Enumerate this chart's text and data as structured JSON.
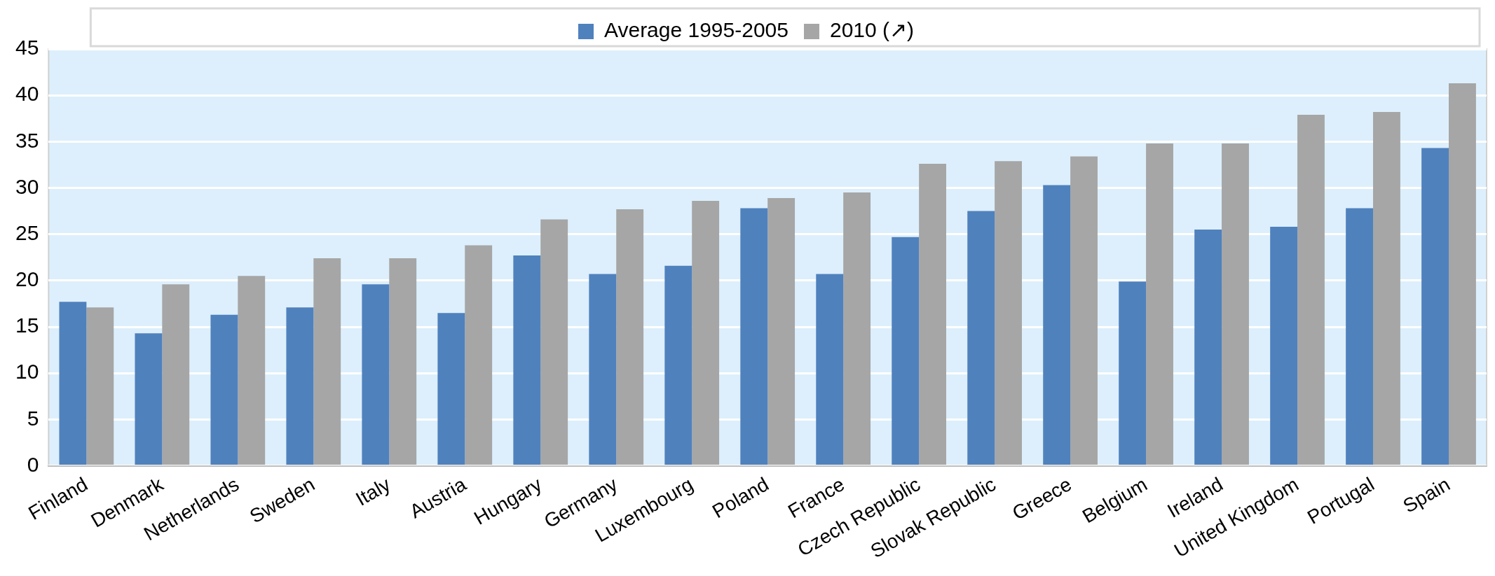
{
  "chart_data": {
    "type": "bar",
    "categories": [
      "Finland",
      "Denmark",
      "Netherlands",
      "Sweden",
      "Italy",
      "Austria",
      "Hungary",
      "Germany",
      "Luxembourg",
      "Poland",
      "France",
      "Czech Republic",
      "Slovak Republic",
      "Greece",
      "Belgium",
      "Ireland",
      "United Kingdom",
      "Portugal",
      "Spain"
    ],
    "series": [
      {
        "name": "Average 1995-2005",
        "color": "#4f81bd",
        "values": [
          17.7,
          14.3,
          16.3,
          17.1,
          19.6,
          16.5,
          22.7,
          20.7,
          21.6,
          27.8,
          20.7,
          24.7,
          27.5,
          30.3,
          19.9,
          25.5,
          25.8,
          27.8,
          34.3
        ]
      },
      {
        "name": "2010 (↗)",
        "color": "#a6a6a6",
        "values": [
          17.1,
          19.6,
          20.5,
          22.4,
          22.4,
          23.8,
          26.6,
          27.7,
          28.6,
          28.9,
          29.5,
          32.6,
          32.9,
          33.4,
          34.8,
          34.8,
          37.9,
          38.2,
          41.3
        ]
      }
    ],
    "ylim": [
      0,
      45
    ],
    "yticks": [
      0,
      5,
      10,
      15,
      20,
      25,
      30,
      35,
      40,
      45
    ],
    "grid": "y",
    "legend": "top"
  }
}
